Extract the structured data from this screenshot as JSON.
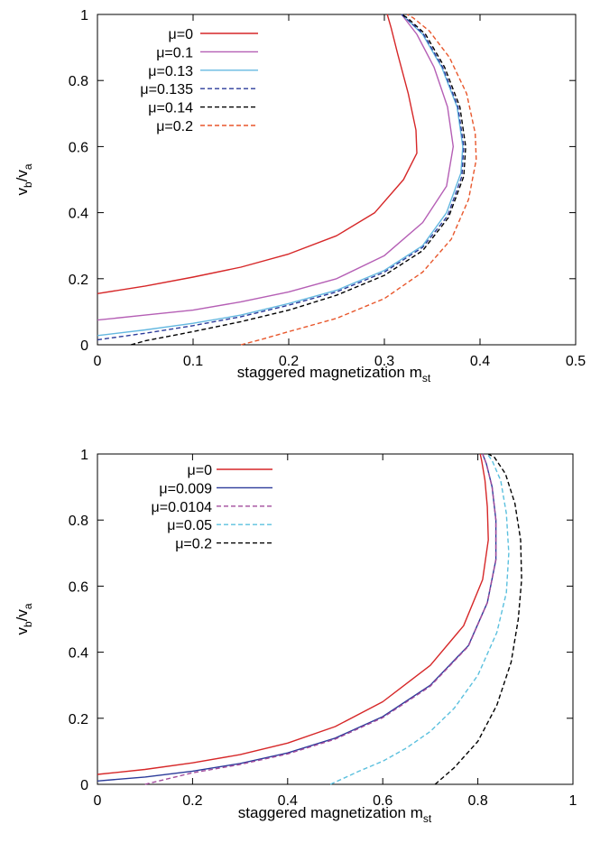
{
  "chart_data": [
    {
      "type": "line",
      "xlabel": "staggered magnetization m",
      "xlabel_sub": "st",
      "ylabel": "v",
      "ylabel_sub1": "b",
      "ylabel_mid": "/v",
      "ylabel_sub2": "a",
      "xlim": [
        0,
        0.5
      ],
      "ylim": [
        0,
        1
      ],
      "xticks": [
        "0",
        "0.1",
        "0.2",
        "0.3",
        "0.4",
        "0.5"
      ],
      "yticks": [
        "0",
        "0.2",
        "0.4",
        "0.6",
        "0.8",
        "1"
      ],
      "xtick_values": [
        0,
        0.1,
        0.2,
        0.3,
        0.4,
        0.5
      ],
      "ytick_values": [
        0,
        0.2,
        0.4,
        0.6,
        0.8,
        1
      ],
      "legend_position": "top-left",
      "series": [
        {
          "name": "μ=0",
          "color": "#d62728",
          "dash": "solid",
          "points": [
            [
              0.0,
              0.155
            ],
            [
              0.05,
              0.178
            ],
            [
              0.1,
              0.205
            ],
            [
              0.15,
              0.235
            ],
            [
              0.2,
              0.275
            ],
            [
              0.25,
              0.33
            ],
            [
              0.29,
              0.4
            ],
            [
              0.32,
              0.5
            ],
            [
              0.334,
              0.58
            ],
            [
              0.333,
              0.65
            ],
            [
              0.325,
              0.76
            ],
            [
              0.314,
              0.88
            ],
            [
              0.307,
              0.96
            ],
            [
              0.303,
              1.0
            ]
          ]
        },
        {
          "name": "μ=0.1",
          "color": "#b55fb5",
          "dash": "solid",
          "points": [
            [
              0.0,
              0.075
            ],
            [
              0.05,
              0.09
            ],
            [
              0.1,
              0.105
            ],
            [
              0.15,
              0.13
            ],
            [
              0.2,
              0.16
            ],
            [
              0.25,
              0.2
            ],
            [
              0.3,
              0.27
            ],
            [
              0.34,
              0.37
            ],
            [
              0.365,
              0.48
            ],
            [
              0.372,
              0.6
            ],
            [
              0.366,
              0.72
            ],
            [
              0.352,
              0.84
            ],
            [
              0.334,
              0.94
            ],
            [
              0.322,
              0.985
            ],
            [
              0.318,
              1.0
            ]
          ]
        },
        {
          "name": "μ=0.13",
          "color": "#64b8e0",
          "dash": "solid",
          "points": [
            [
              0.0,
              0.028
            ],
            [
              0.05,
              0.045
            ],
            [
              0.1,
              0.065
            ],
            [
              0.15,
              0.09
            ],
            [
              0.2,
              0.125
            ],
            [
              0.25,
              0.165
            ],
            [
              0.3,
              0.225
            ],
            [
              0.34,
              0.3
            ],
            [
              0.365,
              0.4
            ],
            [
              0.38,
              0.52
            ],
            [
              0.382,
              0.6
            ],
            [
              0.376,
              0.72
            ],
            [
              0.36,
              0.84
            ],
            [
              0.34,
              0.94
            ],
            [
              0.322,
              0.99
            ],
            [
              0.318,
              1.0
            ]
          ]
        },
        {
          "name": "μ=0.135",
          "color": "#2b3b9a",
          "dash": "dashed",
          "points": [
            [
              0.0,
              0.015
            ],
            [
              0.05,
              0.035
            ],
            [
              0.1,
              0.058
            ],
            [
              0.15,
              0.085
            ],
            [
              0.2,
              0.12
            ],
            [
              0.25,
              0.16
            ],
            [
              0.3,
              0.22
            ],
            [
              0.34,
              0.295
            ],
            [
              0.366,
              0.39
            ],
            [
              0.381,
              0.51
            ],
            [
              0.383,
              0.6
            ],
            [
              0.377,
              0.72
            ],
            [
              0.361,
              0.84
            ],
            [
              0.341,
              0.94
            ],
            [
              0.322,
              0.99
            ],
            [
              0.318,
              1.0
            ]
          ]
        },
        {
          "name": "μ=0.14",
          "color": "#000000",
          "dash": "dashed",
          "points": [
            [
              0.035,
              0.0
            ],
            [
              0.05,
              0.012
            ],
            [
              0.1,
              0.04
            ],
            [
              0.15,
              0.07
            ],
            [
              0.2,
              0.105
            ],
            [
              0.25,
              0.15
            ],
            [
              0.3,
              0.21
            ],
            [
              0.34,
              0.285
            ],
            [
              0.367,
              0.385
            ],
            [
              0.383,
              0.51
            ],
            [
              0.385,
              0.6
            ],
            [
              0.379,
              0.72
            ],
            [
              0.363,
              0.84
            ],
            [
              0.343,
              0.94
            ],
            [
              0.324,
              0.99
            ],
            [
              0.318,
              1.0
            ]
          ]
        },
        {
          "name": "μ=0.2",
          "color": "#e8572c",
          "dash": "dashed",
          "points": [
            [
              0.15,
              0.0
            ],
            [
              0.17,
              0.015
            ],
            [
              0.2,
              0.04
            ],
            [
              0.25,
              0.08
            ],
            [
              0.3,
              0.14
            ],
            [
              0.34,
              0.22
            ],
            [
              0.37,
              0.32
            ],
            [
              0.388,
              0.44
            ],
            [
              0.396,
              0.56
            ],
            [
              0.395,
              0.64
            ],
            [
              0.386,
              0.76
            ],
            [
              0.368,
              0.87
            ],
            [
              0.347,
              0.95
            ],
            [
              0.33,
              0.99
            ],
            [
              0.324,
              1.0
            ]
          ]
        }
      ]
    },
    {
      "type": "line",
      "xlabel": "staggered magnetization m",
      "xlabel_sub": "st",
      "ylabel": "v",
      "ylabel_sub1": "b",
      "ylabel_mid": "/v",
      "ylabel_sub2": "a",
      "xlim": [
        0,
        1
      ],
      "ylim": [
        0,
        1
      ],
      "xticks": [
        "0",
        "0.2",
        "0.4",
        "0.6",
        "0.8",
        "1"
      ],
      "yticks": [
        "0",
        "0.2",
        "0.4",
        "0.6",
        "0.8",
        "1"
      ],
      "xtick_values": [
        0,
        0.2,
        0.4,
        0.6,
        0.8,
        1
      ],
      "ytick_values": [
        0,
        0.2,
        0.4,
        0.6,
        0.8,
        1
      ],
      "legend_position": "top-left",
      "series": [
        {
          "name": "μ=0",
          "color": "#d62728",
          "dash": "solid",
          "points": [
            [
              0.0,
              0.03
            ],
            [
              0.1,
              0.045
            ],
            [
              0.2,
              0.065
            ],
            [
              0.3,
              0.09
            ],
            [
              0.4,
              0.125
            ],
            [
              0.5,
              0.175
            ],
            [
              0.6,
              0.25
            ],
            [
              0.7,
              0.36
            ],
            [
              0.77,
              0.48
            ],
            [
              0.81,
              0.62
            ],
            [
              0.822,
              0.74
            ],
            [
              0.82,
              0.84
            ],
            [
              0.815,
              0.92
            ],
            [
              0.808,
              0.98
            ],
            [
              0.805,
              1.0
            ]
          ]
        },
        {
          "name": "μ=0.009",
          "color": "#2b3b9a",
          "dash": "solid",
          "points": [
            [
              0.0,
              0.01
            ],
            [
              0.1,
              0.022
            ],
            [
              0.2,
              0.04
            ],
            [
              0.3,
              0.063
            ],
            [
              0.4,
              0.095
            ],
            [
              0.5,
              0.14
            ],
            [
              0.6,
              0.205
            ],
            [
              0.7,
              0.3
            ],
            [
              0.78,
              0.42
            ],
            [
              0.82,
              0.55
            ],
            [
              0.838,
              0.68
            ],
            [
              0.838,
              0.8
            ],
            [
              0.83,
              0.9
            ],
            [
              0.818,
              0.97
            ],
            [
              0.81,
              1.0
            ]
          ]
        },
        {
          "name": "μ=0.0104",
          "color": "#a24b9c",
          "dash": "dashed",
          "points": [
            [
              0.1,
              0.0
            ],
            [
              0.2,
              0.035
            ],
            [
              0.3,
              0.06
            ],
            [
              0.4,
              0.092
            ],
            [
              0.5,
              0.137
            ],
            [
              0.6,
              0.202
            ],
            [
              0.7,
              0.297
            ],
            [
              0.78,
              0.418
            ],
            [
              0.82,
              0.55
            ],
            [
              0.838,
              0.68
            ],
            [
              0.838,
              0.8
            ],
            [
              0.83,
              0.9
            ],
            [
              0.818,
              0.97
            ],
            [
              0.81,
              1.0
            ]
          ]
        },
        {
          "name": "μ=0.05",
          "color": "#5bc0de",
          "dash": "dashed",
          "points": [
            [
              0.49,
              0.0
            ],
            [
              0.55,
              0.04
            ],
            [
              0.6,
              0.07
            ],
            [
              0.65,
              0.11
            ],
            [
              0.7,
              0.16
            ],
            [
              0.75,
              0.23
            ],
            [
              0.8,
              0.33
            ],
            [
              0.84,
              0.46
            ],
            [
              0.86,
              0.58
            ],
            [
              0.865,
              0.7
            ],
            [
              0.86,
              0.82
            ],
            [
              0.848,
              0.92
            ],
            [
              0.83,
              0.98
            ],
            [
              0.82,
              1.0
            ]
          ]
        },
        {
          "name": "μ=0.2",
          "color": "#000000",
          "dash": "dashed",
          "points": [
            [
              0.71,
              0.0
            ],
            [
              0.75,
              0.05
            ],
            [
              0.8,
              0.13
            ],
            [
              0.84,
              0.24
            ],
            [
              0.87,
              0.37
            ],
            [
              0.885,
              0.5
            ],
            [
              0.892,
              0.62
            ],
            [
              0.89,
              0.74
            ],
            [
              0.878,
              0.85
            ],
            [
              0.858,
              0.94
            ],
            [
              0.835,
              0.99
            ],
            [
              0.822,
              1.0
            ]
          ]
        }
      ]
    }
  ]
}
